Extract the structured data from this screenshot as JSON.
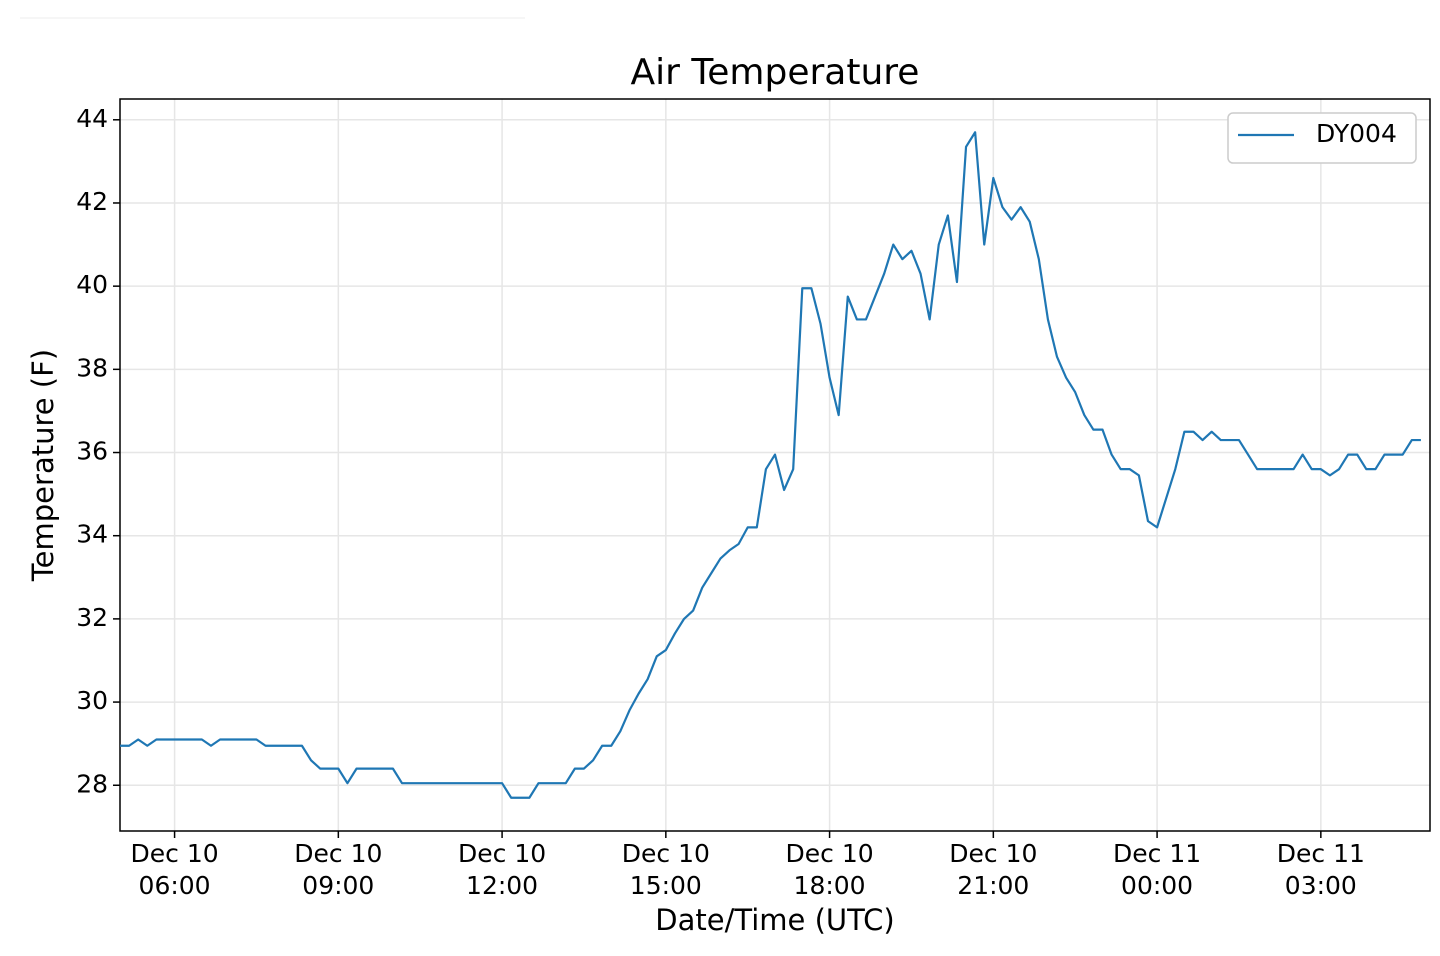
{
  "chart_data": {
    "type": "line",
    "title": "Air Temperature",
    "x_label": "Date/Time (UTC)",
    "y_label": "Temperature (F)",
    "x": [
      "Dec 10 05:00",
      "Dec 10 05:10",
      "Dec 10 05:20",
      "Dec 10 05:30",
      "Dec 10 05:40",
      "Dec 10 05:50",
      "Dec 10 06:00",
      "Dec 10 06:10",
      "Dec 10 06:20",
      "Dec 10 06:30",
      "Dec 10 06:40",
      "Dec 10 06:50",
      "Dec 10 07:00",
      "Dec 10 07:10",
      "Dec 10 07:20",
      "Dec 10 07:30",
      "Dec 10 07:40",
      "Dec 10 07:50",
      "Dec 10 08:00",
      "Dec 10 08:10",
      "Dec 10 08:20",
      "Dec 10 08:30",
      "Dec 10 08:40",
      "Dec 10 08:50",
      "Dec 10 09:00",
      "Dec 10 09:10",
      "Dec 10 09:20",
      "Dec 10 09:30",
      "Dec 10 09:40",
      "Dec 10 09:50",
      "Dec 10 10:00",
      "Dec 10 10:10",
      "Dec 10 10:20",
      "Dec 10 10:30",
      "Dec 10 10:40",
      "Dec 10 10:50",
      "Dec 10 11:00",
      "Dec 10 11:10",
      "Dec 10 11:20",
      "Dec 10 11:30",
      "Dec 10 11:40",
      "Dec 10 11:50",
      "Dec 10 12:00",
      "Dec 10 12:10",
      "Dec 10 12:20",
      "Dec 10 12:30",
      "Dec 10 12:40",
      "Dec 10 12:50",
      "Dec 10 13:00",
      "Dec 10 13:10",
      "Dec 10 13:20",
      "Dec 10 13:30",
      "Dec 10 13:40",
      "Dec 10 13:50",
      "Dec 10 14:00",
      "Dec 10 14:10",
      "Dec 10 14:20",
      "Dec 10 14:30",
      "Dec 10 14:40",
      "Dec 10 14:50",
      "Dec 10 15:00",
      "Dec 10 15:10",
      "Dec 10 15:20",
      "Dec 10 15:30",
      "Dec 10 15:40",
      "Dec 10 15:50",
      "Dec 10 16:00",
      "Dec 10 16:10",
      "Dec 10 16:20",
      "Dec 10 16:30",
      "Dec 10 16:40",
      "Dec 10 16:50",
      "Dec 10 17:00",
      "Dec 10 17:10",
      "Dec 10 17:20",
      "Dec 10 17:30",
      "Dec 10 17:40",
      "Dec 10 17:50",
      "Dec 10 18:00",
      "Dec 10 18:10",
      "Dec 10 18:20",
      "Dec 10 18:30",
      "Dec 10 18:40",
      "Dec 10 18:50",
      "Dec 10 19:00",
      "Dec 10 19:10",
      "Dec 10 19:20",
      "Dec 10 19:30",
      "Dec 10 19:40",
      "Dec 10 19:50",
      "Dec 10 20:00",
      "Dec 10 20:10",
      "Dec 10 20:20",
      "Dec 10 20:30",
      "Dec 10 20:40",
      "Dec 10 20:50",
      "Dec 10 21:00",
      "Dec 10 21:10",
      "Dec 10 21:20",
      "Dec 10 21:30",
      "Dec 10 21:40",
      "Dec 10 21:50",
      "Dec 10 22:00",
      "Dec 10 22:10",
      "Dec 10 22:20",
      "Dec 10 22:30",
      "Dec 10 22:40",
      "Dec 10 22:50",
      "Dec 10 23:00",
      "Dec 10 23:10",
      "Dec 10 23:20",
      "Dec 10 23:30",
      "Dec 10 23:40",
      "Dec 10 23:50",
      "Dec 11 00:00",
      "Dec 11 00:10",
      "Dec 11 00:20",
      "Dec 11 00:30",
      "Dec 11 00:40",
      "Dec 11 00:50",
      "Dec 11 01:00",
      "Dec 11 01:10",
      "Dec 11 01:20",
      "Dec 11 01:30",
      "Dec 11 01:40",
      "Dec 11 01:50",
      "Dec 11 02:00",
      "Dec 11 02:10",
      "Dec 11 02:20",
      "Dec 11 02:30",
      "Dec 11 02:40",
      "Dec 11 02:50",
      "Dec 11 03:00",
      "Dec 11 03:10",
      "Dec 11 03:20",
      "Dec 11 03:30",
      "Dec 11 03:40",
      "Dec 11 03:50",
      "Dec 11 04:00",
      "Dec 11 04:10",
      "Dec 11 04:20",
      "Dec 11 04:30",
      "Dec 11 04:40",
      "Dec 11 04:50"
    ],
    "series": [
      {
        "name": "DY004",
        "color": "#1f77b4",
        "values": [
          28.95,
          28.95,
          29.1,
          28.95,
          29.1,
          29.1,
          29.1,
          29.1,
          29.1,
          29.1,
          28.95,
          29.1,
          29.1,
          29.1,
          29.1,
          29.1,
          28.95,
          28.95,
          28.95,
          28.95,
          28.95,
          28.6,
          28.4,
          28.4,
          28.4,
          28.05,
          28.4,
          28.4,
          28.4,
          28.4,
          28.4,
          28.05,
          28.05,
          28.05,
          28.05,
          28.05,
          28.05,
          28.05,
          28.05,
          28.05,
          28.05,
          28.05,
          28.05,
          27.7,
          27.7,
          27.7,
          28.05,
          28.05,
          28.05,
          28.05,
          28.4,
          28.4,
          28.6,
          28.95,
          28.95,
          29.3,
          29.8,
          30.2,
          30.55,
          31.1,
          31.25,
          31.65,
          32.0,
          32.2,
          32.75,
          33.1,
          33.45,
          33.65,
          33.8,
          34.2,
          34.2,
          35.6,
          35.95,
          35.1,
          35.6,
          39.95,
          39.95,
          39.1,
          37.8,
          36.9,
          39.75,
          39.2,
          39.2,
          39.75,
          40.3,
          41.0,
          40.65,
          40.85,
          40.3,
          39.2,
          41.0,
          41.7,
          40.1,
          43.35,
          43.7,
          41.0,
          42.6,
          41.9,
          41.6,
          41.9,
          41.55,
          40.65,
          39.2,
          38.3,
          37.8,
          37.45,
          36.9,
          36.55,
          36.55,
          35.95,
          35.6,
          35.6,
          35.45,
          34.35,
          34.2,
          34.9,
          35.6,
          36.5,
          36.5,
          36.3,
          36.5,
          36.3,
          36.3,
          36.3,
          35.95,
          35.6,
          35.6,
          35.6,
          35.6,
          35.6,
          35.95,
          35.6,
          35.6,
          35.45,
          35.6,
          35.95,
          35.95,
          35.6,
          35.6,
          35.95,
          35.95,
          35.95,
          36.3,
          36.3
        ]
      }
    ],
    "xlim": [
      "Dec 10 05:00",
      "Dec 11 05:00"
    ],
    "xticks": [
      "Dec 10 06:00",
      "Dec 10 09:00",
      "Dec 10 12:00",
      "Dec 10 15:00",
      "Dec 10 18:00",
      "Dec 10 21:00",
      "Dec 11 00:00",
      "Dec 11 03:00"
    ],
    "ylim": [
      26.9,
      44.5
    ],
    "yticks": [
      28,
      30,
      32,
      34,
      36,
      38,
      40,
      42,
      44
    ],
    "grid": true,
    "legend": "upper right"
  }
}
